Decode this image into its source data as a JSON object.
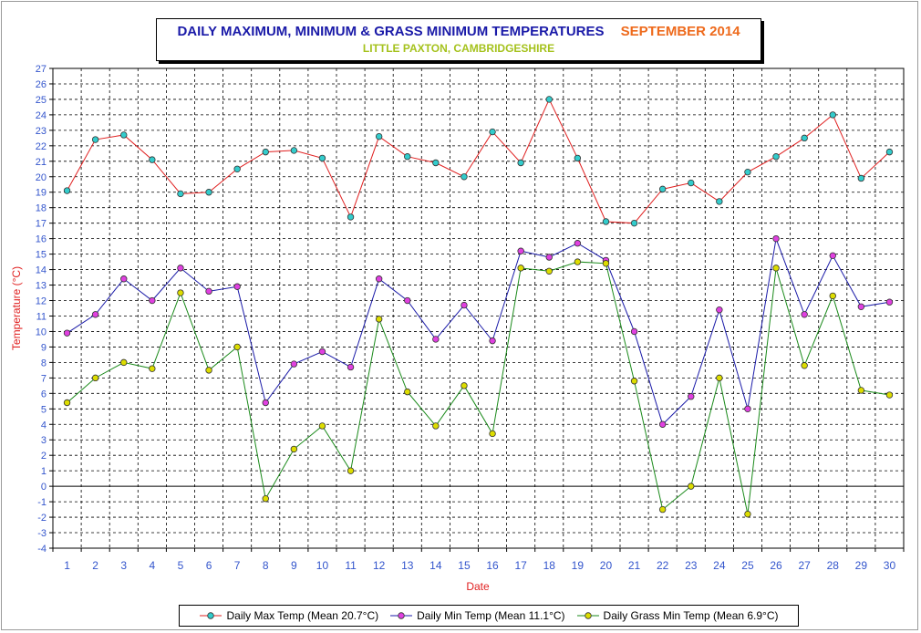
{
  "chart_data": {
    "type": "line",
    "title": "DAILY MAXIMUM, MINIMUM & GRASS MINIMUM TEMPERATURES",
    "period": "SEPTEMBER 2014",
    "subtitle": "LITTLE PAXTON, CAMBRIDGESHIRE",
    "xlabel": "Date",
    "ylabel": "Temperature (°C)",
    "ylim": [
      -4,
      27
    ],
    "grid": true,
    "legend": "bottom",
    "x": [
      1,
      2,
      3,
      4,
      5,
      6,
      7,
      8,
      9,
      10,
      11,
      12,
      13,
      14,
      15,
      16,
      17,
      18,
      19,
      20,
      21,
      22,
      23,
      24,
      25,
      26,
      27,
      28,
      29,
      30
    ],
    "series": [
      {
        "name": "Daily Max Temp (Mean 20.7°C)",
        "line_color": "#e02020",
        "marker_color": "#33cccc",
        "values": [
          19.1,
          22.4,
          22.7,
          21.1,
          18.9,
          19.0,
          20.5,
          21.6,
          21.7,
          21.2,
          17.4,
          22.6,
          21.3,
          20.9,
          20.0,
          22.9,
          20.9,
          25.0,
          21.2,
          17.1,
          17.0,
          19.2,
          19.6,
          18.4,
          20.3,
          21.3,
          22.5,
          24.0,
          19.9,
          21.6
        ]
      },
      {
        "name": "Daily Min Temp (Mean 11.1°C)",
        "line_color": "#1a1aa8",
        "marker_color": "#e040e0",
        "values": [
          9.9,
          11.1,
          13.4,
          12.0,
          14.1,
          12.6,
          12.9,
          5.4,
          7.9,
          8.7,
          7.7,
          13.4,
          12.0,
          9.5,
          11.7,
          9.4,
          15.2,
          14.8,
          15.7,
          14.6,
          10.0,
          4.0,
          5.8,
          11.4,
          5.0,
          16.0,
          11.1,
          14.9,
          11.6,
          11.9
        ]
      },
      {
        "name": "Daily Grass Min Temp (Mean 6.9°C)",
        "line_color": "#1a8a1a",
        "marker_color": "#dddd00",
        "values": [
          5.4,
          7.0,
          8.0,
          7.6,
          12.5,
          7.5,
          9.0,
          -0.8,
          2.4,
          3.9,
          1.0,
          10.8,
          6.1,
          3.9,
          6.5,
          3.4,
          14.1,
          13.9,
          14.5,
          14.4,
          6.8,
          -1.5,
          0.0,
          7.0,
          -1.8,
          14.1,
          7.8,
          12.3,
          6.2,
          5.9
        ]
      }
    ]
  }
}
